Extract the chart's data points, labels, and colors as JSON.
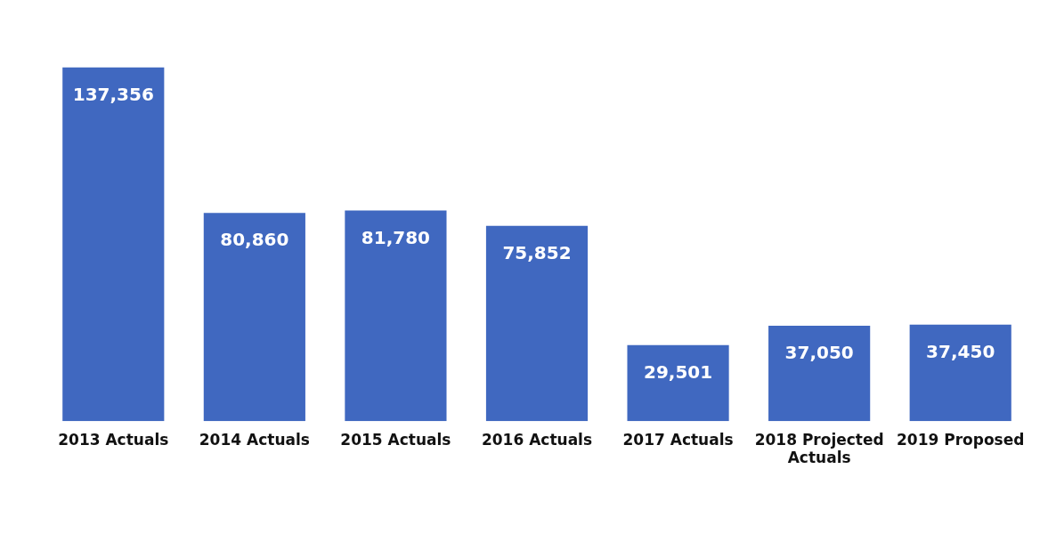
{
  "chart_data": {
    "type": "bar",
    "categories": [
      "2013 Actuals",
      "2014 Actuals",
      "2015 Actuals",
      "2016 Actuals",
      "2017 Actuals",
      "2018 Projected Actuals",
      "2019 Proposed"
    ],
    "values": [
      137356,
      80860,
      81780,
      75852,
      29501,
      37050,
      37450
    ],
    "color": "#4068c0",
    "value_labels": [
      "137,356",
      "80,860",
      "81,780",
      "75,852",
      "29,501",
      "37,050",
      "37,450"
    ],
    "grid": false,
    "legend": false
  }
}
